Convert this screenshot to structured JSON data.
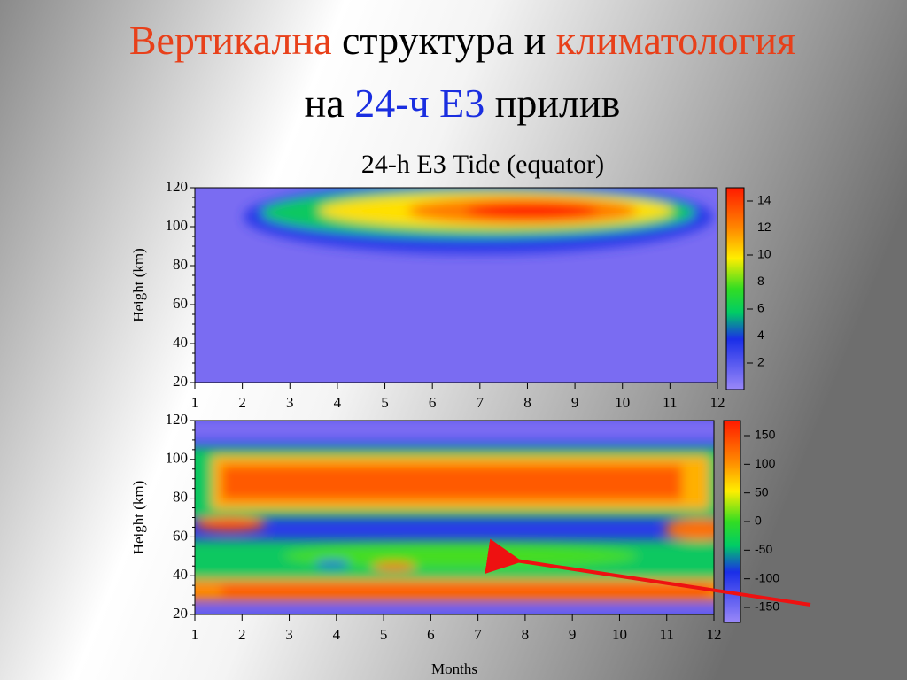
{
  "title": {
    "line1": [
      {
        "text": "Вертикална",
        "color": "#e8401a"
      },
      {
        "text": " структура и ",
        "color": "#000000"
      },
      {
        "text": "климатология",
        "color": "#e8401a"
      }
    ],
    "line2": [
      {
        "text": "на ",
        "color": "#000000"
      },
      {
        "text": "24-ч E3",
        "color": "#1a2ee0"
      },
      {
        "text": " прилив",
        "color": "#000000"
      }
    ]
  },
  "subtitle": "24-h E3 Tide (equator)",
  "panels": [
    {
      "ylabel": "Height  (km)",
      "yticks": [
        120,
        100,
        80,
        60,
        40,
        20
      ],
      "xticks": [
        1,
        2,
        3,
        4,
        5,
        6,
        7,
        8,
        9,
        10,
        11,
        12
      ],
      "colorbar_ticks": [
        14,
        12,
        10,
        8,
        6,
        4,
        2
      ]
    },
    {
      "ylabel": "Height  (km)",
      "yticks": [
        120,
        100,
        80,
        60,
        40,
        20
      ],
      "xticks": [
        1,
        2,
        3,
        4,
        5,
        6,
        7,
        8,
        9,
        10,
        11,
        12
      ],
      "colorbar_ticks": [
        150,
        100,
        50,
        0,
        -50,
        -100,
        -150
      ],
      "xlabel": "Months"
    }
  ]
}
